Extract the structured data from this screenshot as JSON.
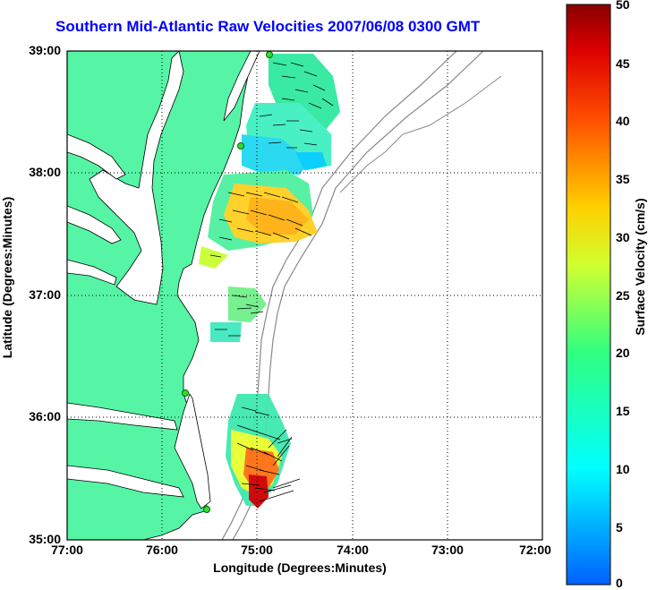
{
  "title": "Southern Mid-Atlantic Raw Velocities 2007/06/08 0300 GMT",
  "axes": {
    "xlabel": "Longitude (Degrees:Minutes)",
    "ylabel": "Latitude (Degrees:Minutes)",
    "xticks": [
      "77:00",
      "76:00",
      "75:00",
      "74:00",
      "73:00",
      "72:00"
    ],
    "yticks": [
      "39:00",
      "38:00",
      "37:00",
      "36:00",
      "35:00"
    ]
  },
  "colorbar": {
    "label": "Surface Velocity (cm/s)",
    "ticks": [
      "50",
      "45",
      "40",
      "35",
      "30",
      "25",
      "20",
      "15",
      "10",
      "5",
      "0"
    ],
    "min": 0,
    "max": 50
  },
  "colors": {
    "land": "#55f5a5",
    "title": "#0000ff",
    "grid": "#000000",
    "bathymetry": "#888888",
    "station": "#33dd33"
  }
}
